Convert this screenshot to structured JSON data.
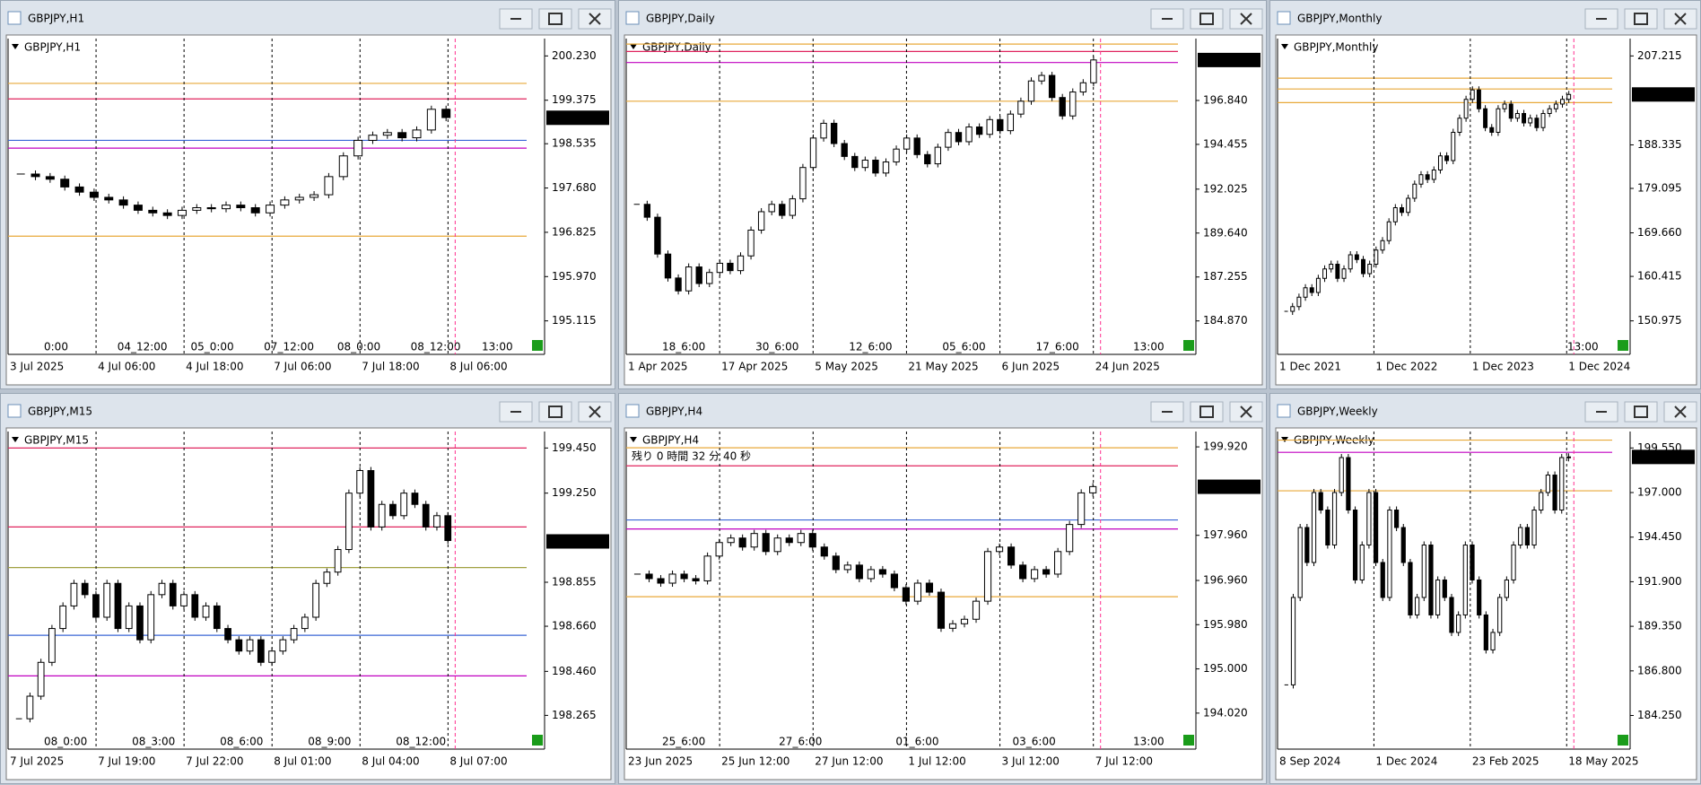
{
  "chart_data": [
    {
      "type": "candlestick",
      "title": "GBPJPY,H1",
      "annotation": "13:00",
      "yticks": [
        {
          "value": 200.23,
          "label": "200.230"
        },
        199.375,
        198.535,
        {
          "value": 197.68,
          "label": "197.680"
        },
        196.825,
        {
          "value": 195.97,
          "label": "195.970"
        },
        195.115
      ],
      "ylim": [
        194.78,
        200.565
      ],
      "last_price": 199.036,
      "x_top": [
        "0:00",
        "04_12:00",
        "05_0:00",
        "07_12:00",
        "08_0:00",
        "08_12:00"
      ],
      "x_bottom": [
        "3 Jul 2025",
        "4 Jul 06:00",
        "4 Jul 18:00",
        "7 Jul 06:00",
        "7 Jul 18:00",
        "8 Jul 06:00"
      ],
      "levels": [
        {
          "value": 199.7,
          "color": "#e8a93a"
        },
        {
          "value": 199.4,
          "color": "#e0245e"
        },
        {
          "value": 198.45,
          "color": "#c000c0"
        },
        {
          "value": 198.6,
          "color": "#3a66d6"
        },
        {
          "value": 196.75,
          "color": "#e8a93a"
        }
      ],
      "values": [
        197.95,
        197.9,
        197.85,
        197.7,
        197.6,
        197.5,
        197.45,
        197.35,
        197.25,
        197.2,
        197.15,
        197.25,
        197.3,
        197.28,
        197.35,
        197.3,
        197.2,
        197.35,
        197.45,
        197.5,
        197.55,
        197.9,
        198.3,
        198.6,
        198.7,
        198.75,
        198.65,
        198.8,
        199.2,
        199.04
      ]
    },
    {
      "type": "candlestick",
      "title": "GBPJPY,Daily",
      "annotation": "13:00",
      "yticks": [
        {
          "value": 196.84,
          "label": "196.840"
        },
        194.455,
        192.025,
        {
          "value": 189.64,
          "label": "189.640"
        },
        187.255,
        {
          "value": 184.87,
          "label": "184.870"
        }
      ],
      "ylim": [
        183.93,
        200.2
      ],
      "last_price": 199.036,
      "x_top": [
        "18_6:00",
        "30_6:00",
        "12_6:00",
        "05_6:00",
        "17_6:00"
      ],
      "x_bottom": [
        "1 Apr 2025",
        "17 Apr 2025",
        "5 May 2025",
        "21 May 2025",
        "6 Jun 2025",
        "24 Jun 2025"
      ],
      "levels": [
        {
          "value": 199.9,
          "color": "#e8a93a"
        },
        {
          "value": 199.5,
          "color": "#e0245e"
        },
        {
          "value": 198.9,
          "color": "#c000c0"
        },
        {
          "value": 196.8,
          "color": "#e8a93a"
        }
      ],
      "values": [
        191.2,
        190.5,
        188.5,
        187.2,
        186.5,
        187.8,
        186.9,
        187.5,
        188.0,
        187.6,
        188.4,
        189.8,
        190.8,
        191.2,
        190.6,
        191.5,
        193.2,
        194.8,
        195.6,
        194.5,
        193.8,
        193.2,
        193.6,
        192.9,
        193.5,
        194.2,
        194.8,
        193.9,
        193.4,
        194.3,
        195.1,
        194.6,
        195.4,
        195.0,
        195.8,
        195.2,
        196.1,
        196.8,
        197.9,
        198.2,
        197.0,
        196.0,
        197.3,
        197.8,
        199.04
      ]
    },
    {
      "type": "candlestick",
      "title": "GBPJPY,Monthly",
      "annotation": "13:00",
      "yticks": [
        207.215,
        188.335,
        179.095,
        {
          "value": 169.66,
          "label": "169.660"
        },
        160.415,
        150.975
      ],
      "ylim": [
        147.29,
        210.9
      ],
      "last_price": 199.036,
      "x_top": [],
      "x_bottom": [
        "1 Dec 2021",
        "1 Dec 2022",
        "1 Dec 2023",
        "1 Dec 2024"
      ],
      "levels": [
        {
          "value": 202.5,
          "color": "#e8a93a"
        },
        {
          "value": 200.2,
          "color": "#e8a93a"
        },
        {
          "value": 197.3,
          "color": "#e8a93a"
        }
      ],
      "values": [
        153,
        154,
        156,
        158,
        157,
        160,
        162,
        163,
        160,
        162,
        165,
        164,
        161,
        163,
        166,
        168,
        172,
        175,
        174,
        177,
        180,
        182,
        181,
        183,
        186,
        185,
        191,
        194,
        198,
        200,
        196,
        192,
        191,
        196,
        197,
        194,
        195,
        193,
        194,
        192,
        195,
        196,
        197,
        198,
        199.04
      ]
    },
    {
      "type": "candlestick",
      "title": "GBPJPY,M15",
      "yticks": [
        {
          "value": 199.45,
          "label": "199.450"
        },
        {
          "value": 199.25,
          "label": "199.250"
        },
        198.855,
        {
          "value": 198.66,
          "label": "198.660"
        },
        {
          "value": 198.46,
          "label": "198.460"
        },
        198.265
      ],
      "ylim": [
        198.187,
        199.523
      ],
      "last_price": 199.036,
      "x_top": [
        "08_0:00",
        "08_3:00",
        "08_6:00",
        "08_9:00",
        "08_12:00"
      ],
      "x_bottom": [
        "7 Jul 2025",
        "7 Jul 19:00",
        "7 Jul 22:00",
        "8 Jul 01:00",
        "8 Jul 04:00",
        "8 Jul 07:00"
      ],
      "levels": [
        {
          "value": 199.45,
          "color": "#e0245e"
        },
        {
          "value": 199.1,
          "color": "#e0245e"
        },
        {
          "value": 198.92,
          "color": "#a0a040"
        },
        {
          "value": 198.62,
          "color": "#3a66d6"
        },
        {
          "value": 198.44,
          "color": "#c000c0"
        }
      ],
      "values": [
        198.25,
        198.35,
        198.5,
        198.65,
        198.75,
        198.85,
        198.8,
        198.7,
        198.85,
        198.65,
        198.75,
        198.6,
        198.8,
        198.85,
        198.75,
        198.8,
        198.7,
        198.75,
        198.65,
        198.6,
        198.55,
        198.6,
        198.5,
        198.55,
        198.6,
        198.65,
        198.7,
        198.85,
        198.9,
        199.0,
        199.25,
        199.35,
        199.1,
        199.2,
        199.15,
        199.25,
        199.2,
        199.1,
        199.15,
        199.04
      ]
    },
    {
      "type": "candlestick",
      "title": "GBPJPY,H4",
      "annotation": "13:00",
      "countdown": "残り 0 時間 32 分 40 秒",
      "yticks": [
        {
          "value": 199.92,
          "label": "199.920"
        },
        {
          "value": 197.96,
          "label": "197.960"
        },
        {
          "value": 196.96,
          "label": "196.960"
        },
        {
          "value": 195.98,
          "label": "195.980"
        },
        {
          "value": 195,
          "label": "195.000"
        },
        {
          "value": 194.02,
          "label": "194.020"
        }
      ],
      "ylim": [
        193.58,
        200.26
      ],
      "last_price": 199.036,
      "x_top": [
        "25_6:00",
        "27_6:00",
        "01_6:00",
        "03_6:00"
      ],
      "x_bottom": [
        "23 Jun 2025",
        "25 Jun 12:00",
        "27 Jun 12:00",
        "1 Jul 12:00",
        "3 Jul 12:00",
        "7 Jul 12:00"
      ],
      "levels": [
        {
          "value": 199.9,
          "color": "#e8a93a"
        },
        {
          "value": 199.5,
          "color": "#e0245e"
        },
        {
          "value": 198.3,
          "color": "#3a66d6"
        },
        {
          "value": 198.1,
          "color": "#c000c0"
        },
        {
          "value": 196.6,
          "color": "#e8a93a"
        }
      ],
      "values": [
        197.1,
        197.0,
        196.9,
        197.1,
        197.0,
        196.95,
        197.5,
        197.8,
        197.9,
        197.7,
        198.0,
        197.6,
        197.9,
        197.8,
        198.0,
        197.7,
        197.5,
        197.2,
        197.3,
        197.0,
        197.2,
        197.1,
        196.8,
        196.5,
        196.9,
        196.7,
        195.9,
        196.0,
        196.1,
        196.5,
        197.6,
        197.7,
        197.3,
        197.0,
        197.2,
        197.1,
        197.6,
        198.2,
        198.9,
        199.04
      ]
    },
    {
      "type": "candlestick",
      "title": "GBPJPY,Weekly",
      "yticks": [
        {
          "value": 199.55,
          "label": "199.550"
        },
        {
          "value": 197,
          "label": "197.000"
        },
        {
          "value": 194.45,
          "label": "194.450"
        },
        {
          "value": 191.9,
          "label": "191.900"
        },
        {
          "value": 189.35,
          "label": "189.350"
        },
        {
          "value": 186.8,
          "label": "186.800"
        },
        {
          "value": 184.25,
          "label": "184.250"
        }
      ],
      "ylim": [
        183.25,
        200.49
      ],
      "last_price": 199.036,
      "x_top": [],
      "x_bottom": [
        "8 Sep 2024",
        "1 Dec 2024",
        "23 Feb 2025",
        "18 May 2025"
      ],
      "levels": [
        {
          "value": 200.0,
          "color": "#e8a93a"
        },
        {
          "value": 199.3,
          "color": "#c000c0"
        },
        {
          "value": 197.1,
          "color": "#e8a93a"
        }
      ],
      "values": [
        186,
        191,
        195,
        193,
        197,
        196,
        194,
        197,
        199,
        196,
        192,
        194,
        197,
        193,
        191,
        196,
        195,
        193,
        190,
        191,
        194,
        190,
        192,
        191,
        189,
        190,
        194,
        192,
        190,
        188,
        189,
        191,
        192,
        194,
        195,
        194,
        196,
        197,
        198,
        196,
        199,
        199.04
      ]
    }
  ]
}
